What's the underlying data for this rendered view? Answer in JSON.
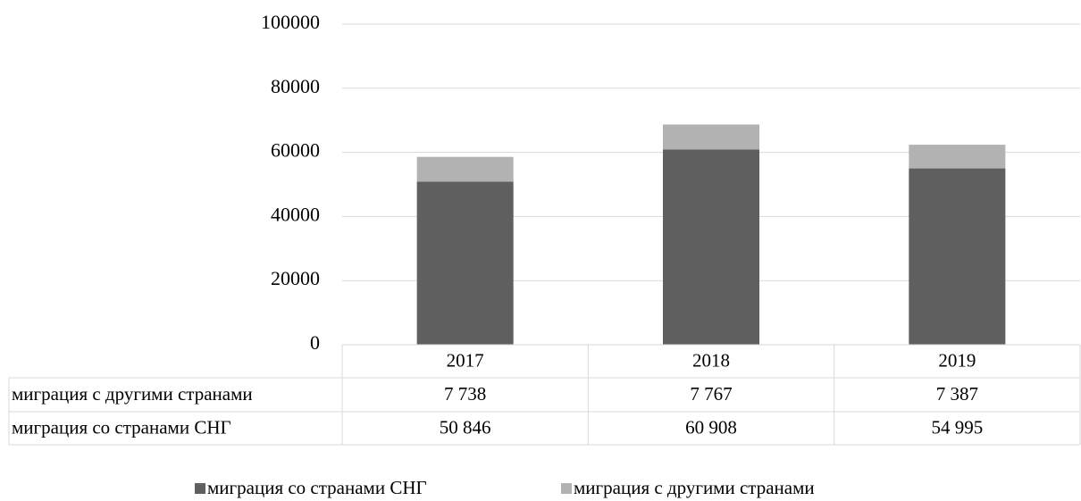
{
  "chart_data": {
    "type": "stacked_bar",
    "categories": [
      "2017",
      "2018",
      "2019"
    ],
    "series": [
      {
        "name": "миграция со странами СНГ",
        "color": "#5f5f5f",
        "values": [
          50846,
          60908,
          54995
        ],
        "value_labels": [
          "50 846",
          "60 908",
          "54 995"
        ]
      },
      {
        "name": "миграция с другими странами",
        "color": "#b2b2b2",
        "values": [
          7738,
          7767,
          7387
        ],
        "value_labels": [
          "7 738",
          "7 767",
          "7 387"
        ]
      }
    ],
    "ylim": [
      0,
      100000
    ],
    "yticks": [
      0,
      20000,
      40000,
      60000,
      80000,
      100000
    ],
    "grid": true,
    "legend": "bottom"
  }
}
